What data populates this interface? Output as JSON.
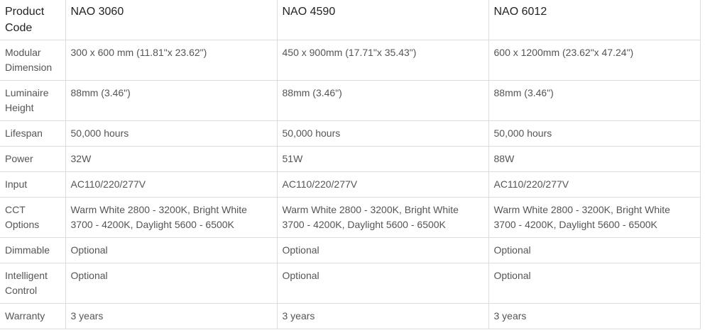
{
  "table": {
    "header": [
      "Product Code",
      "NAO 3060",
      "NAO 4590",
      "NAO 6012"
    ],
    "rows": [
      [
        "Modular Dimension",
        "300 x 600 mm (11.81\"x 23.62\")",
        "450 x 900mm (17.71\"x 35.43\")",
        "600 x 1200mm (23.62\"x 47.24\")"
      ],
      [
        "Luminaire Height",
        "88mm (3.46\")",
        "88mm (3.46\")",
        "88mm (3.46\")"
      ],
      [
        "Lifespan",
        "50,000 hours",
        "50,000 hours",
        "50,000 hours"
      ],
      [
        "Power",
        "32W",
        "51W",
        "88W"
      ],
      [
        "Input",
        "AC110/220/277V",
        "AC110/220/277V",
        "AC110/220/277V"
      ],
      [
        "CCT Options",
        "Warm White 2800 - 3200K, Bright White 3700 - 4200K, Daylight 5600 - 6500K",
        "Warm White 2800 - 3200K, Bright White 3700 - 4200K, Daylight 5600 - 6500K",
        "Warm White 2800 - 3200K, Bright White 3700 - 4200K, Daylight 5600 - 6500K"
      ],
      [
        "Dimmable",
        "Optional",
        "Optional",
        "Optional"
      ],
      [
        "Intelligent Control",
        "Optional",
        "Optional",
        "Optional"
      ],
      [
        "Warranty",
        "3 years",
        "3 years",
        "3 years"
      ]
    ]
  }
}
